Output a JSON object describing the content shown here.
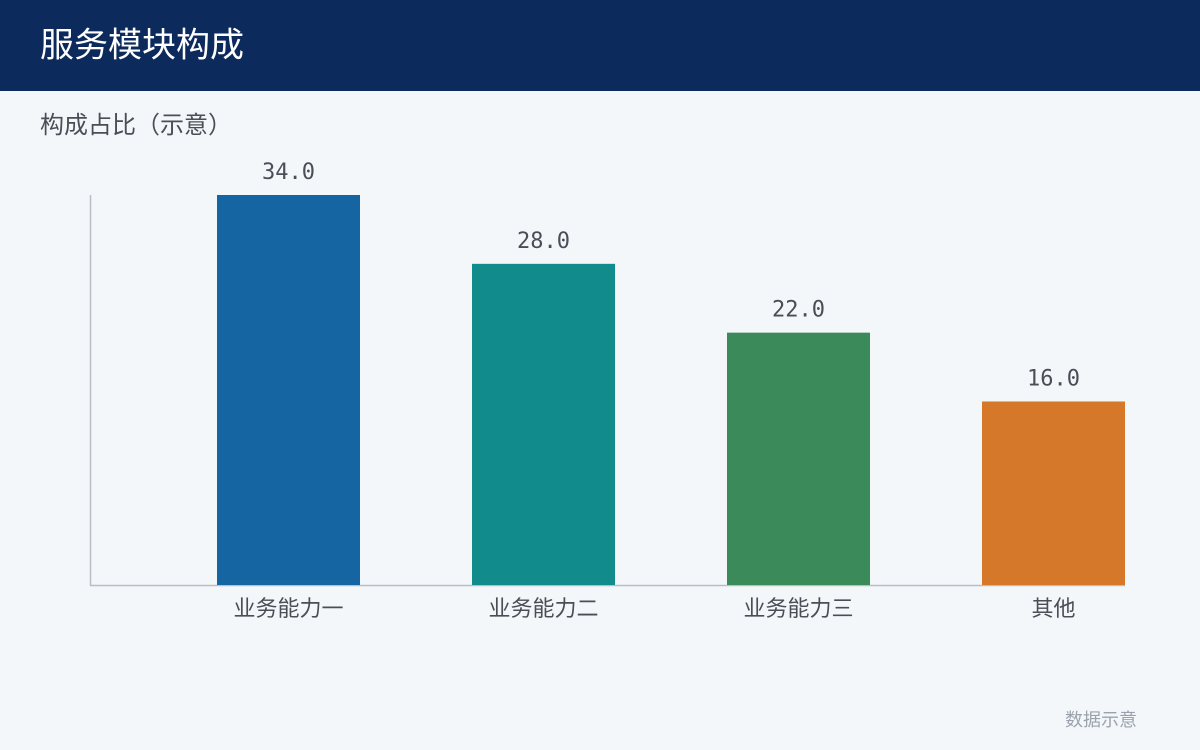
{
  "chart_data": {
    "type": "bar",
    "title": "服务模块构成",
    "subtitle": "构成占比（示意）",
    "footnote": "数据示意",
    "categories": [
      "业务能力一",
      "业务能力二",
      "业务能力三",
      "其他"
    ],
    "values": [
      34,
      28,
      22,
      16
    ],
    "value_labels": [
      "34.0",
      "28.0",
      "22.0",
      "16.0"
    ],
    "colors": [
      "#1665a3",
      "#128b8c",
      "#3a8a5a",
      "#d6782a"
    ],
    "ylim": [
      0,
      34
    ]
  }
}
